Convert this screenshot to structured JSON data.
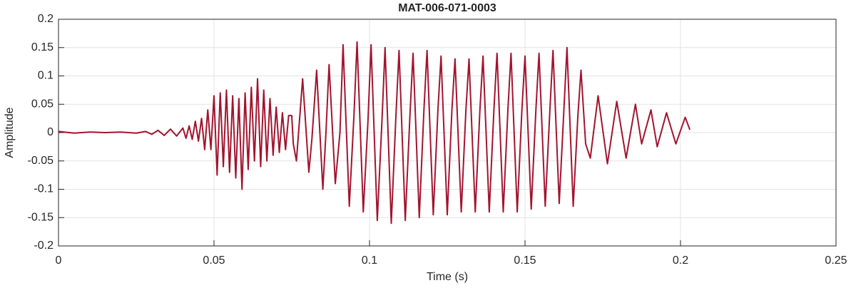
{
  "chart_data": {
    "type": "line",
    "title": "MAT-006-071-0003",
    "x_label": "Time (s)",
    "y_label": "Amplitude",
    "color": "#a2142f",
    "grid": true,
    "xlim": [
      0,
      0.25
    ],
    "xticks": [
      0,
      0.05,
      0.1,
      0.15,
      0.2,
      0.25
    ],
    "ylim": [
      -0.2,
      0.2
    ],
    "yticks": [
      -0.2,
      -0.15,
      -0.1,
      -0.05,
      0,
      0.05,
      0.1,
      0.15,
      0.2
    ],
    "x": [
      0,
      0.005,
      0.01,
      0.015,
      0.02,
      0.025,
      0.028,
      0.03,
      0.032,
      0.034,
      0.036,
      0.038,
      0.04,
      0.041,
      0.042,
      0.043,
      0.044,
      0.045,
      0.046,
      0.047,
      0.048,
      0.049,
      0.05,
      0.051,
      0.052,
      0.053,
      0.054,
      0.055,
      0.056,
      0.057,
      0.058,
      0.059,
      0.06,
      0.061,
      0.062,
      0.063,
      0.064,
      0.065,
      0.066,
      0.067,
      0.068,
      0.069,
      0.07,
      0.071,
      0.072,
      0.073,
      0.074,
      0.075,
      0.0755,
      0.0765,
      0.0785,
      0.0805,
      0.0815,
      0.083,
      0.085,
      0.086,
      0.087,
      0.089,
      0.0905,
      0.0915,
      0.0935,
      0.095,
      0.096,
      0.098,
      0.0995,
      0.1005,
      0.1025,
      0.104,
      0.105,
      0.107,
      0.1085,
      0.1095,
      0.1115,
      0.113,
      0.114,
      0.116,
      0.1175,
      0.1185,
      0.1205,
      0.122,
      0.123,
      0.125,
      0.1265,
      0.1275,
      0.1295,
      0.131,
      0.132,
      0.134,
      0.1355,
      0.1365,
      0.1385,
      0.14,
      0.141,
      0.143,
      0.1445,
      0.1455,
      0.1475,
      0.149,
      0.15,
      0.152,
      0.1535,
      0.1545,
      0.1565,
      0.158,
      0.159,
      0.161,
      0.1625,
      0.1635,
      0.1655,
      0.167,
      0.168,
      0.1695,
      0.171,
      0.1735,
      0.1765,
      0.1795,
      0.1825,
      0.1855,
      0.1875,
      0.1905,
      0.1925,
      0.1955,
      0.1985,
      0.2015,
      0.203
    ],
    "values": [
      0.002,
      -0.001,
      0.001,
      0,
      0.001,
      -0.001,
      0.002,
      -0.003,
      0.004,
      -0.005,
      0.006,
      -0.006,
      0.008,
      -0.01,
      0.012,
      -0.012,
      0.02,
      -0.015,
      0.025,
      -0.03,
      0.04,
      -0.03,
      0.065,
      -0.075,
      0.07,
      -0.06,
      0.075,
      -0.07,
      0.065,
      -0.08,
      0.06,
      -0.1,
      0.07,
      -0.065,
      0.08,
      -0.05,
      0.095,
      -0.06,
      0.075,
      -0.05,
      0.06,
      -0.04,
      0.045,
      -0.035,
      0.035,
      -0.03,
      0.03,
      0.03,
      -0.02,
      -0.05,
      0.095,
      -0.07,
      -0.01,
      0.11,
      -0.1,
      0,
      0.12,
      -0.09,
      0,
      0.155,
      -0.13,
      0.03,
      0.16,
      -0.14,
      0.02,
      0.155,
      -0.155,
      0.02,
      0.15,
      -0.16,
      0.03,
      0.145,
      -0.155,
      0.03,
      0.14,
      -0.15,
      0.04,
      0.145,
      -0.145,
      0.04,
      0.135,
      -0.145,
      0.04,
      0.13,
      -0.14,
      0.04,
      0.13,
      -0.14,
      0.04,
      0.135,
      -0.14,
      0.04,
      0.14,
      -0.14,
      0.04,
      0.14,
      -0.14,
      0.04,
      0.135,
      -0.135,
      0.04,
      0.14,
      -0.13,
      0.04,
      0.145,
      -0.125,
      0.04,
      0.15,
      -0.13,
      0.03,
      0.11,
      -0.02,
      -0.045,
      0.065,
      -0.055,
      0.055,
      -0.045,
      0.05,
      -0.02,
      0.04,
      -0.025,
      0.035,
      -0.02,
      0.027,
      0.005
    ]
  }
}
